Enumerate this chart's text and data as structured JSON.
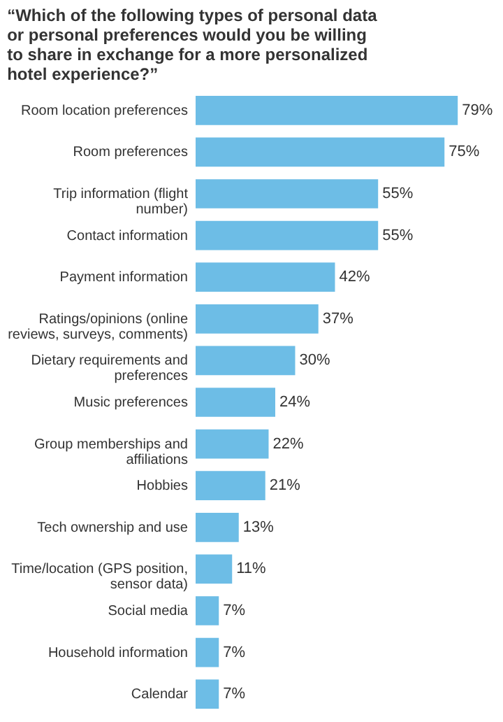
{
  "chart_data": {
    "type": "bar",
    "orientation": "horizontal",
    "title": "“Which of the following types of personal data or personal preferences would you be willing to share in exchange for a more personalized hotel experience?”",
    "categories": [
      "Room location preferences",
      "Room preferences",
      "Trip information (flight number)",
      "Contact information",
      "Payment information",
      "Ratings/opinions (online reviews, surveys, comments)",
      "Dietary requirements and preferences",
      "Music preferences",
      "Group memberships and affiliations",
      "Hobbies",
      "Tech ownership and use",
      "Time/location (GPS position, sensor data)",
      "Social media",
      "Household information",
      "Calendar"
    ],
    "values": [
      79,
      75,
      55,
      55,
      42,
      37,
      30,
      24,
      22,
      21,
      13,
      11,
      7,
      7,
      7
    ],
    "value_labels": [
      "79%",
      "75%",
      "55%",
      "55%",
      "42%",
      "37%",
      "30%",
      "24%",
      "22%",
      "21%",
      "13%",
      "11%",
      "7%",
      "7%",
      "7%"
    ],
    "color": "#6dbde6",
    "grid": false
  }
}
